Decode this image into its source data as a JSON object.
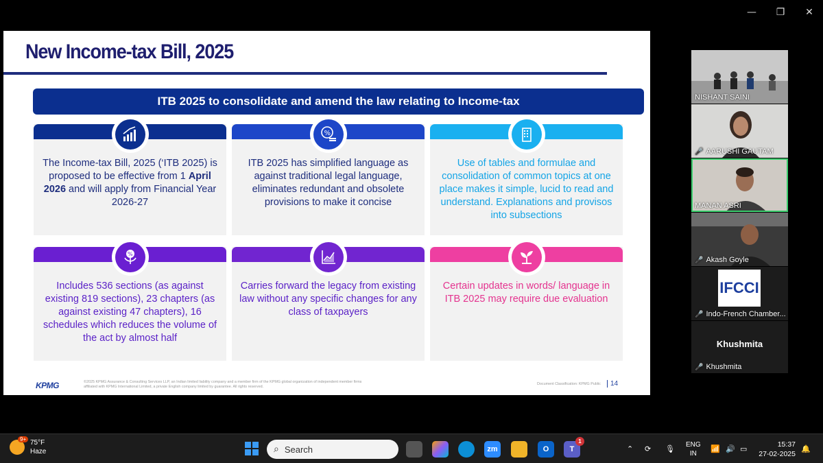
{
  "window_controls": {
    "minimize": "—",
    "restore": "❐",
    "close": "✕"
  },
  "slide": {
    "title": "New Income-tax Bill, 2025",
    "banner": "ITB 2025 to consolidate and amend the law relating to Income-tax",
    "cards": [
      {
        "icon": "growth-chart-icon",
        "color": "#0b2f8f",
        "text_color": "#1e2d7d",
        "text_pre": "The Income-tax Bill, 2025 (‘ITB 2025) is proposed to be effective from 1 ",
        "text_bold": "April 2026",
        "text_post": " and will apply from Financial Year 2026-27"
      },
      {
        "icon": "percent-coins-icon",
        "color": "#1d46c8",
        "text_color": "#1e2d7d",
        "text": "ITB 2025 has simplified language as against traditional legal language, eliminates redundant and obsolete provisions to make it concise"
      },
      {
        "icon": "building-icon",
        "color": "#1ab0f0",
        "text_color": "#13a4e6",
        "text": "Use of tables and formulae and consolidation of common topics at one place makes it simple, lucid to read and understand. Explanations and provisos into subsections"
      },
      {
        "icon": "percent-plant-icon",
        "color": "#6a1fd1",
        "text_color": "#5b22c7",
        "text": "Includes 536 sections (as against existing 819 sections), 23 chapters (as against existing 47 chapters), 16 schedules which reduces the volume of the act by almost half"
      },
      {
        "icon": "line-chart-icon",
        "color": "#7125d0",
        "text_color": "#5b22c7",
        "text": "Carries forward the legacy from existing law without any specific changes for any class of taxpayers"
      },
      {
        "icon": "sprout-icon",
        "color": "#ee3fa1",
        "text_color": "#e4338f",
        "text": "Certain updates in words/ language in ITB 2025  may require due evaluation"
      }
    ],
    "footer": {
      "logo": "KPMG",
      "note": "©2025 KPMG Assurance & Consulting Services LLP, an Indian limited liability company and a member firm of the KPMG global organization of independent member firms affiliated with KPMG International Limited, a private English company limited by guarantee. All rights reserved.",
      "classification": "Document Classification: KPMG Public",
      "page": "14"
    }
  },
  "participants": [
    {
      "name": "NISHANT SAINI",
      "muted": false
    },
    {
      "name": "AARUSHI GAUTAM",
      "muted": true
    },
    {
      "name": "MANAN ASRI",
      "muted": false,
      "active": true
    },
    {
      "name": "Akash Goyle",
      "muted": true
    },
    {
      "name": "Indo-French Chamber...",
      "muted": true,
      "logo": "IFCCI"
    },
    {
      "name": "Khushmita",
      "muted": true,
      "display": "Khushmita"
    }
  ],
  "taskbar": {
    "weather_temp": "75°F",
    "weather_desc": "Haze",
    "weather_badge": "9+",
    "search_placeholder": "Search",
    "apps": [
      {
        "name": "task-view-icon",
        "label": "",
        "color": "#555"
      },
      {
        "name": "copilot-icon",
        "label": "",
        "color": "#8b5cf6"
      },
      {
        "name": "edge-icon",
        "label": "",
        "color": "#0c8fd6"
      },
      {
        "name": "zoom-icon",
        "label": "zm",
        "color": "#2d8cff"
      },
      {
        "name": "file-explorer-icon",
        "label": "",
        "color": "#f0b429"
      },
      {
        "name": "outlook-icon",
        "label": "O",
        "color": "#0a64c9"
      },
      {
        "name": "teams-icon",
        "label": "T",
        "color": "#5b5fc7"
      }
    ],
    "teams_badge": "1",
    "language": "ENG",
    "region": "IN",
    "time": "15:37",
    "date": "27-02-2025"
  }
}
